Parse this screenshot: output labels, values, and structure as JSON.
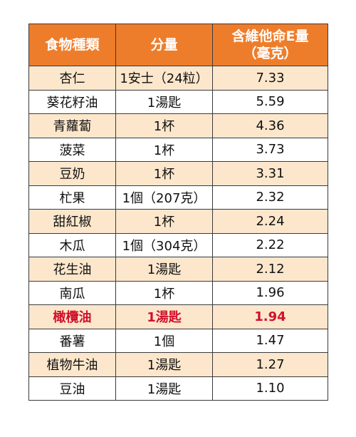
{
  "colors": {
    "header_bg": "#ee7d2b",
    "header_text": "#ffffff",
    "shaded_row": "#fde7cc",
    "plain_row": "#ffffff",
    "highlight_text": "#d0112b",
    "border": "#3a3a3a"
  },
  "table": {
    "headers": {
      "food": "食物種類",
      "amount": "分量",
      "vitamin_e_line1": "含維他命E量",
      "vitamin_e_line2": "（毫克）"
    },
    "rows": [
      {
        "food": "杏仁",
        "amount": "1安士（24粒）",
        "value": "7.33",
        "highlight": false
      },
      {
        "food": "葵花籽油",
        "amount": "1湯匙",
        "value": "5.59",
        "highlight": false
      },
      {
        "food": "青蘿蔔",
        "amount": "1杯",
        "value": "4.36",
        "highlight": false
      },
      {
        "food": "菠菜",
        "amount": "1杯",
        "value": "3.73",
        "highlight": false
      },
      {
        "food": "豆奶",
        "amount": "1杯",
        "value": "3.31",
        "highlight": false
      },
      {
        "food": "杧果",
        "amount": "1個（207克）",
        "value": "2.32",
        "highlight": false
      },
      {
        "food": "甜紅椒",
        "amount": "1杯",
        "value": "2.24",
        "highlight": false
      },
      {
        "food": "木瓜",
        "amount": "1個（304克）",
        "value": "2.22",
        "highlight": false
      },
      {
        "food": "花生油",
        "amount": "1湯匙",
        "value": "2.12",
        "highlight": false
      },
      {
        "food": "南瓜",
        "amount": "1杯",
        "value": "1.96",
        "highlight": false
      },
      {
        "food": "橄欖油",
        "amount": "1湯匙",
        "value": "1.94",
        "highlight": true
      },
      {
        "food": "番薯",
        "amount": "1個",
        "value": "1.47",
        "highlight": false
      },
      {
        "food": "植物牛油",
        "amount": "1湯匙",
        "value": "1.27",
        "highlight": false
      },
      {
        "food": "豆油",
        "amount": "1湯匙",
        "value": "1.10",
        "highlight": false
      }
    ]
  }
}
